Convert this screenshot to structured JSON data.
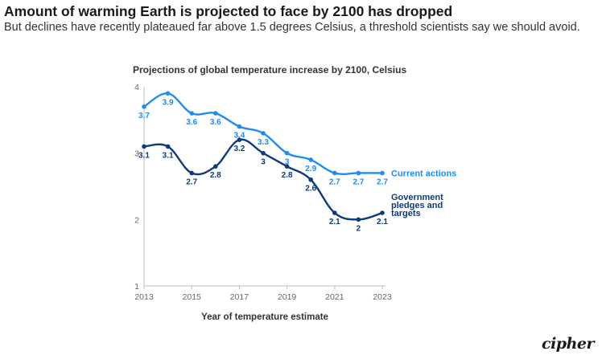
{
  "headline": "Amount of warming Earth is projected to face by 2100 has dropped",
  "subhead": "But declines have recently plateaued far above 1.5 degrees Celsius, a threshold scientists say we should avoid.",
  "logo": "cipher",
  "colors": {
    "current": "#1f8cf0",
    "pledges": "#0e3a7e",
    "axis": "#bbbbbb",
    "text": "#333333"
  },
  "chart_data": {
    "type": "line",
    "title": "Projections of global temperature increase by 2100, Celsius",
    "xlabel": "Year of temperature estimate",
    "ylabel": "",
    "x": [
      2013,
      2014,
      2015,
      2016,
      2017,
      2018,
      2019,
      2020,
      2021,
      2022,
      2023
    ],
    "xticks": [
      "2013",
      "2015",
      "2017",
      "2019",
      "2021",
      "2023"
    ],
    "yticks": [
      "1",
      "2",
      "3",
      "4"
    ],
    "xlim": [
      2013,
      2023
    ],
    "ylim": [
      1,
      4
    ],
    "grid": false,
    "legend": "direct labels at line ends",
    "series": [
      {
        "name": "Current actions",
        "color": "#1f8cf0",
        "values": [
          3.7,
          3.9,
          3.6,
          3.6,
          3.4,
          3.3,
          3.0,
          2.9,
          2.7,
          2.7,
          2.7
        ],
        "labels": [
          "3.7",
          "3.9",
          "3.6",
          "3.6",
          "3.4",
          "3.3",
          "3",
          "2.9",
          "2.7",
          "2.7",
          "2.7"
        ]
      },
      {
        "name": "Government pledges and targets",
        "name_lines": [
          "Government",
          "pledges and",
          "targets"
        ],
        "color": "#0e3a7e",
        "values": [
          3.1,
          3.1,
          2.7,
          2.8,
          3.2,
          3.0,
          2.8,
          2.6,
          2.1,
          2.0,
          2.1
        ],
        "labels": [
          "3.1",
          "3.1",
          "2.7",
          "2.8",
          "3.2",
          "3",
          "2.8",
          "2.6",
          "2.1",
          "2",
          "2.1"
        ]
      }
    ]
  }
}
